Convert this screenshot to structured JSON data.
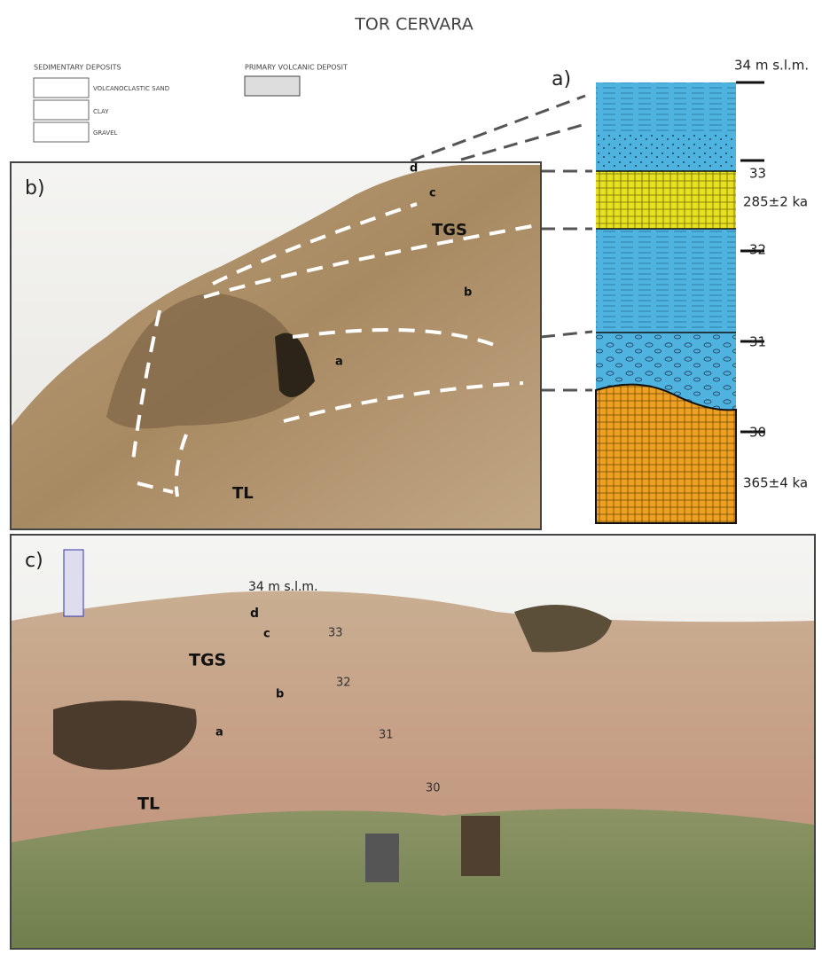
{
  "title": "TOR CERVARA",
  "legend": {
    "sedimentary_heading": "SEDIMENTARY DEPOSITS",
    "sand": "VOLCANOCLASTIC SAND",
    "clay": "CLAY",
    "gravel": "GRAVEL",
    "primary_heading": "PRIMARY VOLCANIC DEPOSIT"
  },
  "panel_a": {
    "label": "a)",
    "top": "34 m s.l.m.",
    "heights": [
      "33",
      "32",
      "31",
      "30"
    ],
    "ages": [
      "285±2 ka",
      "365±4 ka"
    ]
  },
  "panel_b": {
    "label": "b)",
    "labels": [
      "d",
      "c",
      "TGS",
      "b",
      "a",
      "TL"
    ]
  },
  "panel_c": {
    "label": "c)",
    "labels": [
      "34 m s.l.m.",
      "d",
      "c",
      "33",
      "TGS",
      "32",
      "b",
      "a",
      "31",
      "30",
      "TL"
    ]
  }
}
